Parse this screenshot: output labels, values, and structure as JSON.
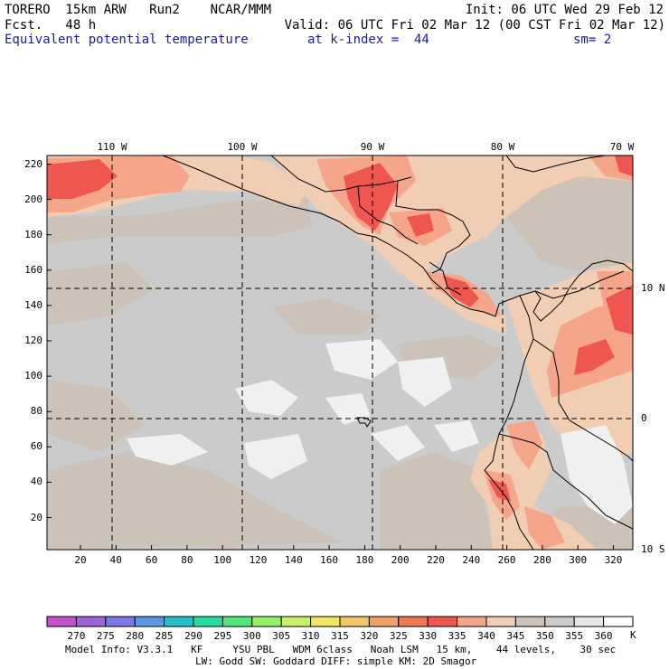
{
  "header": {
    "left_line1": "TORERO  15km ARW   Run2    NCAR/MMM",
    "left_line2": "Fcst.   48 h",
    "right_line1": "Init: 06 UTC Wed 29 Feb 12",
    "right_line2": "Valid: 06 UTC Fri 02 Mar 12 (00 CST Fri 02 Mar 12)",
    "field": "Equivalent potential temperature",
    "level": "at k-index =  44",
    "smooth": "sm= 2"
  },
  "map": {
    "lon_labels": [
      "110 W",
      "100 W",
      "90 W",
      "80 W",
      "70 W"
    ],
    "lat_labels": [
      "10 N",
      "0",
      "10 S"
    ],
    "y_ticks": [
      "220",
      "200",
      "180",
      "160",
      "140",
      "120",
      "100",
      "80",
      "60",
      "40",
      "20"
    ],
    "x_ticks": [
      "20",
      "40",
      "60",
      "80",
      "100",
      "120",
      "140",
      "160",
      "180",
      "200",
      "220",
      "240",
      "260",
      "280",
      "300",
      "320"
    ],
    "colors": {
      "background_gray": "#cbcbcb",
      "light_tan": "#cdc2b8",
      "peach": "#f0cdb3",
      "salmon": "#f5a58a",
      "red": "#f05650",
      "white": "#f0f0f0"
    }
  },
  "colorbar": {
    "labels": [
      "270",
      "275",
      "280",
      "285",
      "290",
      "295",
      "300",
      "305",
      "310",
      "315",
      "320",
      "325",
      "330",
      "335",
      "340",
      "345",
      "350",
      "355",
      "360"
    ],
    "unit": "K",
    "colors": [
      "#c850c8",
      "#9c64d8",
      "#7878e6",
      "#5a96e6",
      "#28bec8",
      "#28dca0",
      "#50e678",
      "#96f064",
      "#c8f064",
      "#f0e664",
      "#f0c864",
      "#f0a064",
      "#f07855",
      "#f05650",
      "#f5a58a",
      "#f0cdb3",
      "#cdc2b8",
      "#cbcbcb",
      "#e6e6e6",
      "#ffffff"
    ]
  },
  "footer": {
    "line1": "Model Info: V3.3.1   KF     YSU PBL   WDM 6class   Noah LSM   15 km,    44 levels,    30 sec",
    "line2": "LW: Godd SW: Goddard DIFF: simple KM: 2D Smagor"
  }
}
